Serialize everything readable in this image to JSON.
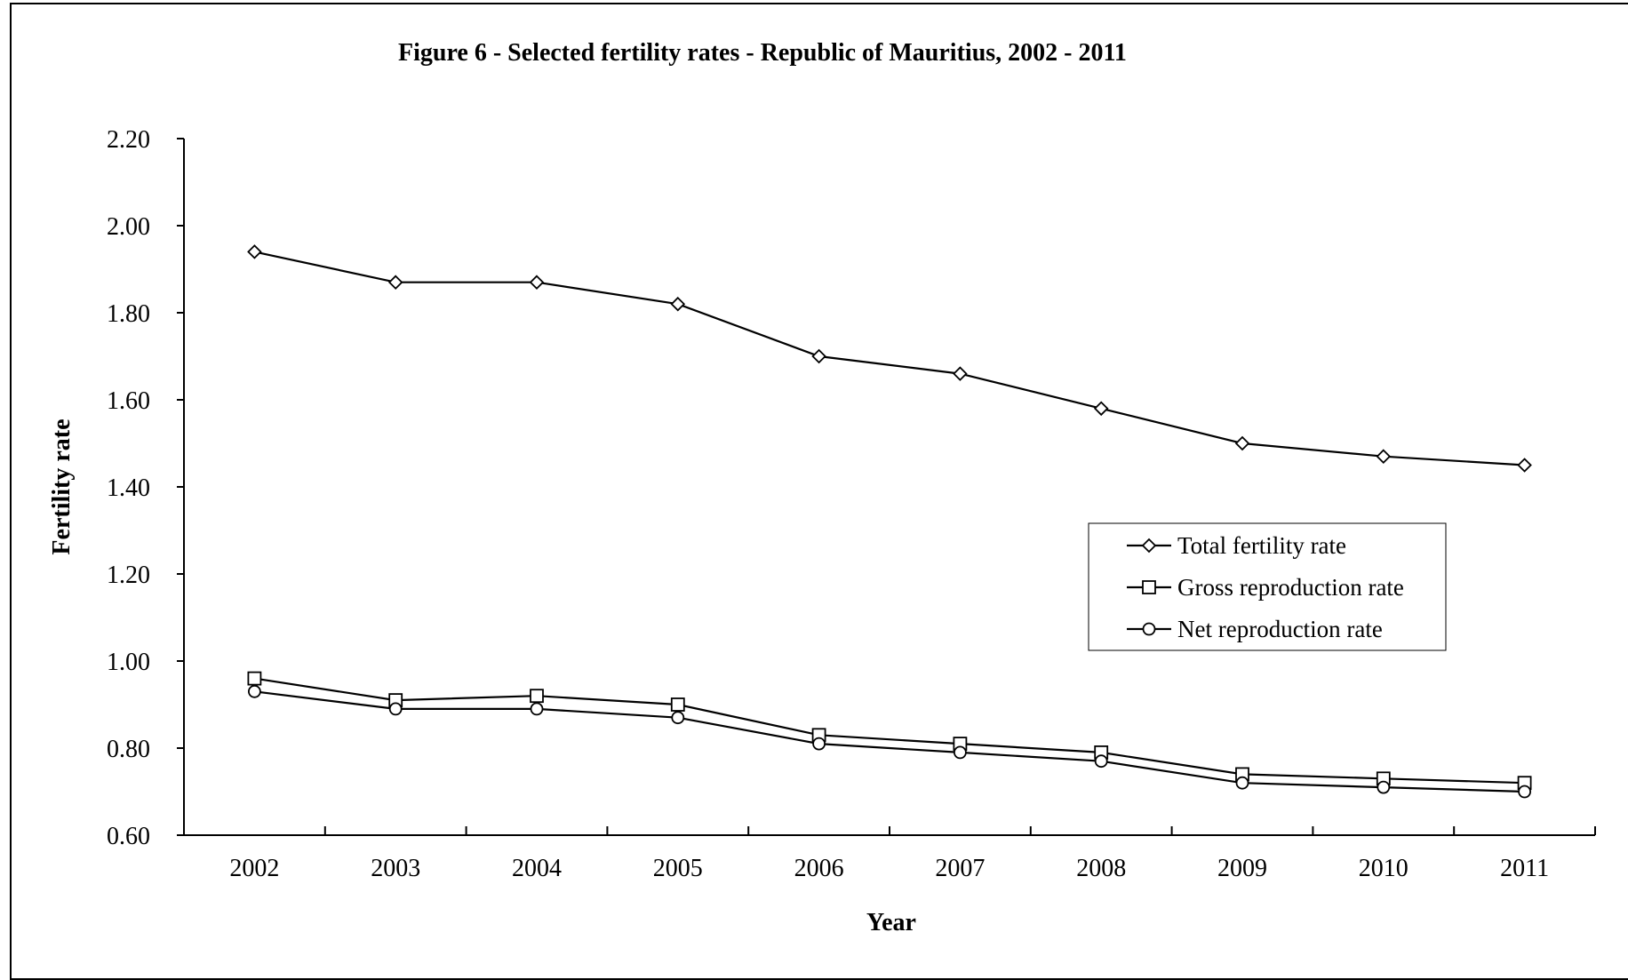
{
  "chart_data": {
    "type": "line",
    "title": "Figure 6 - Selected fertility rates - Republic of Mauritius, 2002 - 2011",
    "xlabel": "Year",
    "ylabel": "Fertility rate",
    "categories": [
      "2002",
      "2003",
      "2004",
      "2005",
      "2006",
      "2007",
      "2008",
      "2009",
      "2010",
      "2011"
    ],
    "ylim": [
      0.6,
      2.2
    ],
    "yticks": [
      "0.60",
      "0.80",
      "1.00",
      "1.20",
      "1.40",
      "1.60",
      "1.80",
      "2.00",
      "2.20"
    ],
    "grid": false,
    "legend_position": "right-center",
    "series": [
      {
        "name": "Total fertility rate",
        "marker": "diamond",
        "values": [
          1.94,
          1.87,
          1.87,
          1.82,
          1.7,
          1.66,
          1.58,
          1.5,
          1.47,
          1.45
        ]
      },
      {
        "name": "Gross reproduction rate",
        "marker": "square",
        "values": [
          0.96,
          0.91,
          0.92,
          0.9,
          0.83,
          0.81,
          0.79,
          0.74,
          0.73,
          0.72
        ]
      },
      {
        "name": "Net reproduction rate",
        "marker": "circle",
        "values": [
          0.93,
          0.89,
          0.89,
          0.87,
          0.81,
          0.79,
          0.77,
          0.72,
          0.71,
          0.7
        ]
      }
    ]
  },
  "colors": {
    "line": "#000000",
    "marker_fill": "#ffffff",
    "background": "#ffffff"
  }
}
